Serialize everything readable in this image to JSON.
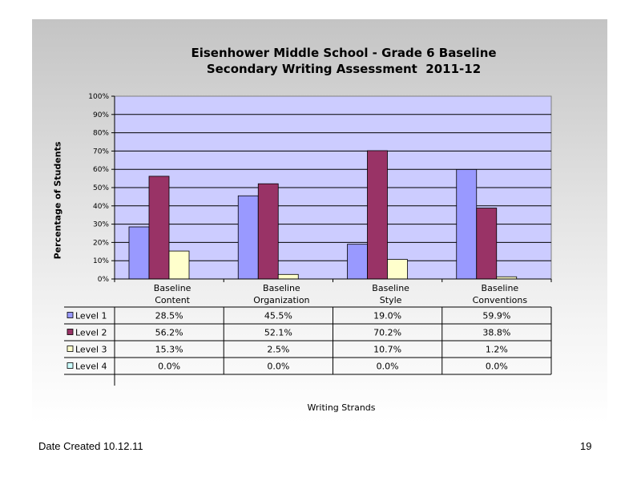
{
  "chart_data": {
    "type": "bar",
    "title_lines": [
      "Eisenhower Middle School - Grade 6 Baseline",
      "Secondary Writing Assessment  2011-12"
    ],
    "xlabel": "Writing Strands",
    "ylabel": "Percentage of Students",
    "categories": [
      [
        "Baseline",
        "Content"
      ],
      [
        "Baseline",
        "Organization"
      ],
      [
        "Baseline",
        "Style"
      ],
      [
        "Baseline",
        "Conventions"
      ]
    ],
    "ylim": [
      0,
      100
    ],
    "y_ticks": [
      "0%",
      "10%",
      "20%",
      "30%",
      "40%",
      "50%",
      "60%",
      "70%",
      "80%",
      "90%",
      "100%"
    ],
    "grid": true,
    "series": [
      {
        "name": "Level 1",
        "color": "#9999ff",
        "values": [
          28.5,
          45.5,
          19.0,
          59.9
        ],
        "labels": [
          "28.5%",
          "45.5%",
          "19.0%",
          "59.9%"
        ]
      },
      {
        "name": "Level 2",
        "color": "#993366",
        "values": [
          56.2,
          52.1,
          70.2,
          38.8
        ],
        "labels": [
          "56.2%",
          "52.1%",
          "70.2%",
          "38.8%"
        ]
      },
      {
        "name": "Level 3",
        "color": "#ffffcc",
        "values": [
          15.3,
          2.5,
          10.7,
          1.2
        ],
        "labels": [
          "15.3%",
          "2.5%",
          "10.7%",
          "1.2%"
        ]
      },
      {
        "name": "Level 4",
        "color": "#ccffff",
        "values": [
          0.0,
          0.0,
          0.0,
          0.0
        ],
        "labels": [
          "0.0%",
          "0.0%",
          "0.0%",
          "0.0%"
        ]
      }
    ],
    "plot_background": "#ccccff"
  },
  "footer": {
    "date": "Date Created  10.12.11",
    "page": "19"
  }
}
